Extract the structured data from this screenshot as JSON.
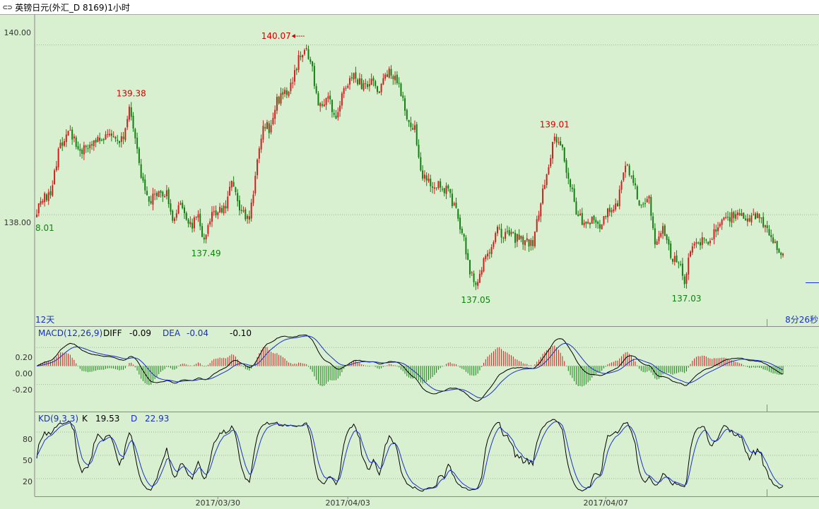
{
  "window": {
    "title": "英镑日元(外汇_D 8169)1小时",
    "icon": "link-icon"
  },
  "colors": {
    "background": "#d8f0cf",
    "up": "#d02020",
    "down": "#128012",
    "hi_label": "#d40000",
    "lo_label": "#128012",
    "k_line": "#000000",
    "d_line": "#1a2fd0",
    "text_blue": "#1a2fc0"
  },
  "chart_data": [
    {
      "type": "candlestick",
      "name": "price",
      "y_ticks": [
        "140.00",
        "138.00"
      ],
      "ylim": [
        136.72,
        140.33
      ],
      "annotations": {
        "left_value": "8.01",
        "markers": [
          {
            "text": "139.38",
            "kind": "high",
            "bar": 47
          },
          {
            "text": "137.49",
            "kind": "low",
            "bar": 85
          },
          {
            "text": "140.07",
            "kind": "high",
            "bar": 138
          },
          {
            "text": "137.05",
            "kind": "low",
            "bar": 224
          },
          {
            "text": "139.01",
            "kind": "high",
            "bar": 263
          },
          {
            "text": "137.03",
            "kind": "low",
            "bar": 329
          }
        ],
        "bottom_left": "12天",
        "bottom_right": "8分26秒"
      },
      "anchors": [
        [
          0,
          138.05
        ],
        [
          3,
          138.18
        ],
        [
          7,
          138.25
        ],
        [
          12,
          138.85
        ],
        [
          17,
          138.95
        ],
        [
          22,
          138.75
        ],
        [
          27,
          138.85
        ],
        [
          32,
          138.88
        ],
        [
          37,
          138.92
        ],
        [
          42,
          138.88
        ],
        [
          44,
          138.85
        ],
        [
          47,
          139.28
        ],
        [
          50,
          138.9
        ],
        [
          53,
          138.45
        ],
        [
          57,
          138.15
        ],
        [
          62,
          138.3
        ],
        [
          66,
          138.25
        ],
        [
          70,
          137.9
        ],
        [
          73,
          138.15
        ],
        [
          77,
          137.85
        ],
        [
          82,
          137.95
        ],
        [
          85,
          137.65
        ],
        [
          89,
          138.0
        ],
        [
          95,
          138.05
        ],
        [
          99,
          138.35
        ],
        [
          103,
          138.1
        ],
        [
          108,
          137.9
        ],
        [
          111,
          138.45
        ],
        [
          115,
          139.1
        ],
        [
          118,
          139.0
        ],
        [
          122,
          139.35
        ],
        [
          127,
          139.45
        ],
        [
          130,
          139.55
        ],
        [
          133,
          139.85
        ],
        [
          136,
          139.95
        ],
        [
          139,
          139.85
        ],
        [
          143,
          139.25
        ],
        [
          148,
          139.4
        ],
        [
          152,
          139.1
        ],
        [
          157,
          139.55
        ],
        [
          161,
          139.65
        ],
        [
          166,
          139.5
        ],
        [
          170,
          139.6
        ],
        [
          174,
          139.45
        ],
        [
          177,
          139.6
        ],
        [
          180,
          139.7
        ],
        [
          184,
          139.5
        ],
        [
          188,
          139.15
        ],
        [
          192,
          139.0
        ],
        [
          195,
          138.5
        ],
        [
          198,
          138.38
        ],
        [
          203,
          138.35
        ],
        [
          208,
          138.3
        ],
        [
          213,
          138.05
        ],
        [
          217,
          137.7
        ],
        [
          220,
          137.3
        ],
        [
          224,
          137.2
        ],
        [
          227,
          137.5
        ],
        [
          230,
          137.6
        ],
        [
          234,
          137.8
        ],
        [
          239,
          137.75
        ],
        [
          244,
          137.72
        ],
        [
          248,
          137.7
        ],
        [
          252,
          137.65
        ],
        [
          256,
          138.15
        ],
        [
          260,
          138.55
        ],
        [
          263,
          138.95
        ],
        [
          267,
          138.75
        ],
        [
          270,
          138.45
        ],
        [
          274,
          138.05
        ],
        [
          278,
          137.9
        ],
        [
          282,
          137.95
        ],
        [
          286,
          137.85
        ],
        [
          290,
          138.05
        ],
        [
          295,
          138.15
        ],
        [
          299,
          138.6
        ],
        [
          303,
          138.35
        ],
        [
          307,
          138.1
        ],
        [
          311,
          138.2
        ],
        [
          314,
          137.65
        ],
        [
          318,
          137.85
        ],
        [
          322,
          137.5
        ],
        [
          326,
          137.45
        ],
        [
          329,
          137.2
        ],
        [
          332,
          137.6
        ],
        [
          336,
          137.7
        ],
        [
          340,
          137.65
        ],
        [
          344,
          137.8
        ],
        [
          348,
          138.0
        ],
        [
          352,
          137.95
        ],
        [
          356,
          138.05
        ],
        [
          360,
          137.95
        ],
        [
          364,
          138.0
        ],
        [
          368,
          137.95
        ],
        [
          371,
          137.8
        ],
        [
          374,
          137.7
        ],
        [
          377,
          137.6
        ],
        [
          379,
          137.55
        ]
      ],
      "bar_count": 380
    },
    {
      "type": "line",
      "name": "MACD",
      "label": "MACD(12,26,9)",
      "readouts": {
        "DIFF": "-0.09",
        "DEA": "-0.04",
        "MACD": "-0.10"
      },
      "y_ticks": [
        "0.20",
        "0.00",
        "-0.20"
      ],
      "ylim": [
        -0.47,
        0.4
      ]
    },
    {
      "type": "line",
      "name": "KD",
      "label": "KD(9,3,3)",
      "readouts": {
        "K": "19.53",
        "D": "22.93"
      },
      "y_ticks": [
        "80",
        "50",
        "20"
      ],
      "ylim": [
        0,
        100
      ]
    }
  ],
  "x_axis": {
    "labels": [
      {
        "text": "2017/03/30",
        "bar": 92
      },
      {
        "text": "2017/04/03",
        "bar": 158
      },
      {
        "text": "2017/04/07",
        "bar": 289
      }
    ]
  }
}
